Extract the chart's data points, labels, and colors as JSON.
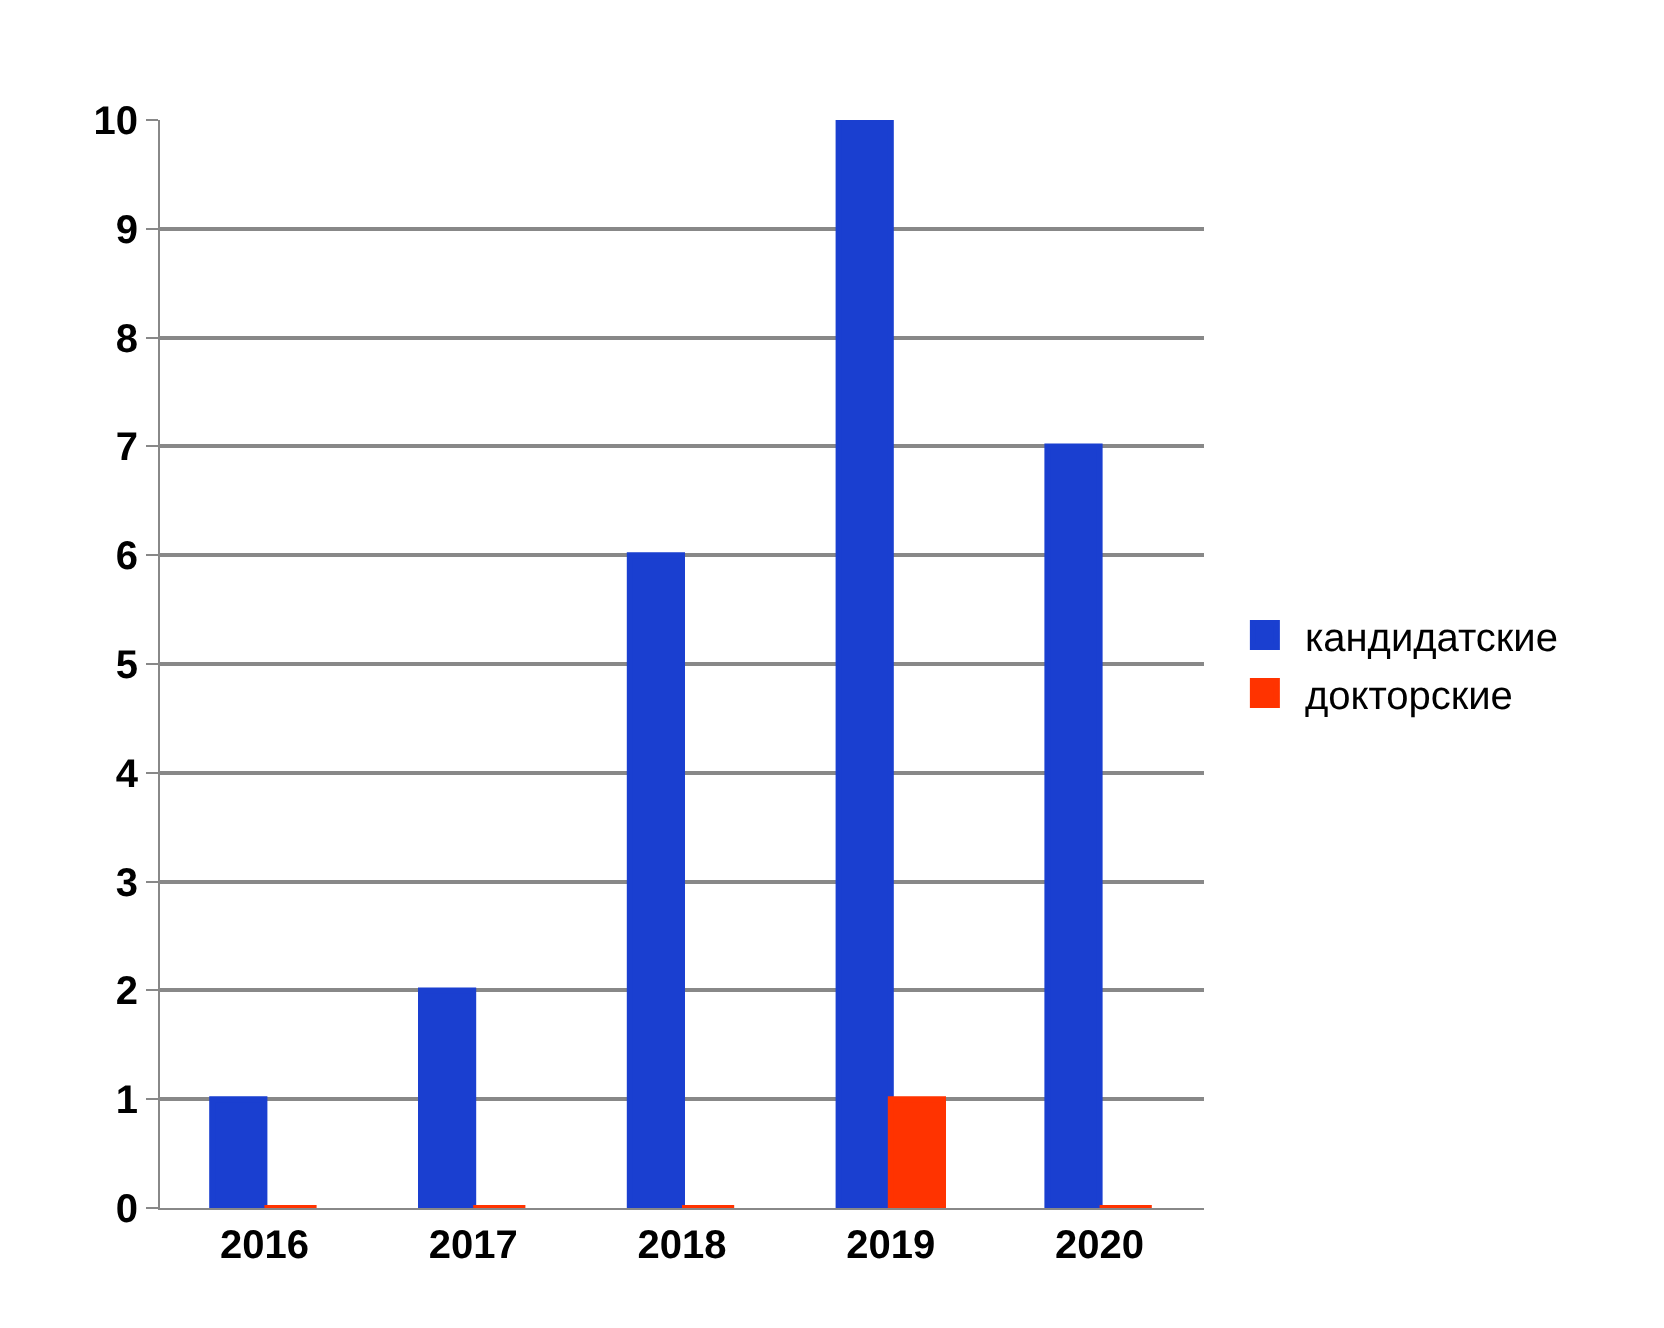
{
  "chart_data": {
    "type": "bar",
    "categories": [
      "2016",
      "2017",
      "2018",
      "2019",
      "2020"
    ],
    "series": [
      {
        "name": "кандидатские",
        "color": "#1a3fd0",
        "values": [
          1,
          2,
          6,
          10,
          7
        ]
      },
      {
        "name": "докторские",
        "color": "#ff3300",
        "values": [
          0,
          0,
          0,
          1,
          0
        ]
      }
    ],
    "ylim": [
      0,
      10
    ],
    "yticks": [
      0,
      1,
      2,
      3,
      4,
      5,
      6,
      7,
      8,
      9,
      10
    ],
    "grid": "y",
    "legend": "right"
  }
}
